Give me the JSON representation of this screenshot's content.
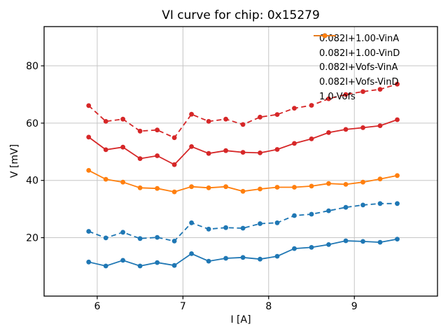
{
  "chart_data": {
    "type": "line",
    "title": "VI curve for chip: 0x15279",
    "xlabel": "I [A]",
    "ylabel": "V [mV]",
    "xlim": [
      5.38,
      9.97
    ],
    "ylim": [
      -0.4,
      93.7
    ],
    "xticks": [
      6,
      7,
      8,
      9
    ],
    "yticks": [
      20,
      40,
      60,
      80
    ],
    "grid": true,
    "grid_color": "#c6c6c6",
    "legend_position": "upper right",
    "legend_frame": false,
    "marker": "circle",
    "x": [
      5.9,
      6.1,
      6.3,
      6.5,
      6.7,
      6.9,
      7.1,
      7.3,
      7.5,
      7.7,
      7.9,
      8.1,
      8.3,
      8.5,
      8.7,
      8.9,
      9.1,
      9.3,
      9.5
    ],
    "series": [
      {
        "name": "0.082I+1.00-VinA",
        "color": "#d62728",
        "style": "solid",
        "values": [
          55.1,
          50.7,
          51.6,
          47.6,
          48.6,
          45.5,
          51.8,
          49.4,
          50.4,
          49.8,
          49.6,
          50.8,
          52.9,
          54.5,
          56.7,
          57.8,
          58.4,
          59.1,
          61.2
        ]
      },
      {
        "name": "0.082I+1.00-VinD",
        "color": "#d62728",
        "style": "dashed",
        "values": [
          66.1,
          60.6,
          61.4,
          57.2,
          57.6,
          54.9,
          63.1,
          60.6,
          61.4,
          59.5,
          62.1,
          63.0,
          65.2,
          66.2,
          68.5,
          70.0,
          71.0,
          71.8,
          73.6
        ]
      },
      {
        "name": "0.082I+Vofs-VinA",
        "color": "#1f77b4",
        "style": "solid",
        "values": [
          11.5,
          10.1,
          12.1,
          10.1,
          11.3,
          10.3,
          14.4,
          11.8,
          12.8,
          13.1,
          12.5,
          13.5,
          16.2,
          16.6,
          17.6,
          18.9,
          18.7,
          18.4,
          19.5
        ]
      },
      {
        "name": "0.082I+Vofs-VinD",
        "color": "#1f77b4",
        "style": "dashed",
        "values": [
          22.2,
          19.9,
          21.9,
          19.7,
          20.1,
          18.8,
          25.2,
          23.0,
          23.5,
          23.3,
          24.9,
          25.2,
          27.7,
          28.2,
          29.4,
          30.6,
          31.4,
          31.9,
          31.9
        ]
      },
      {
        "name": "1.0-Vofs",
        "color": "#ff7f0e",
        "style": "solid",
        "values": [
          43.5,
          40.4,
          39.4,
          37.4,
          37.2,
          36.0,
          37.8,
          37.4,
          37.8,
          36.2,
          37.0,
          37.6,
          37.6,
          38.0,
          38.9,
          38.6,
          39.4,
          40.5,
          41.7
        ]
      }
    ]
  }
}
